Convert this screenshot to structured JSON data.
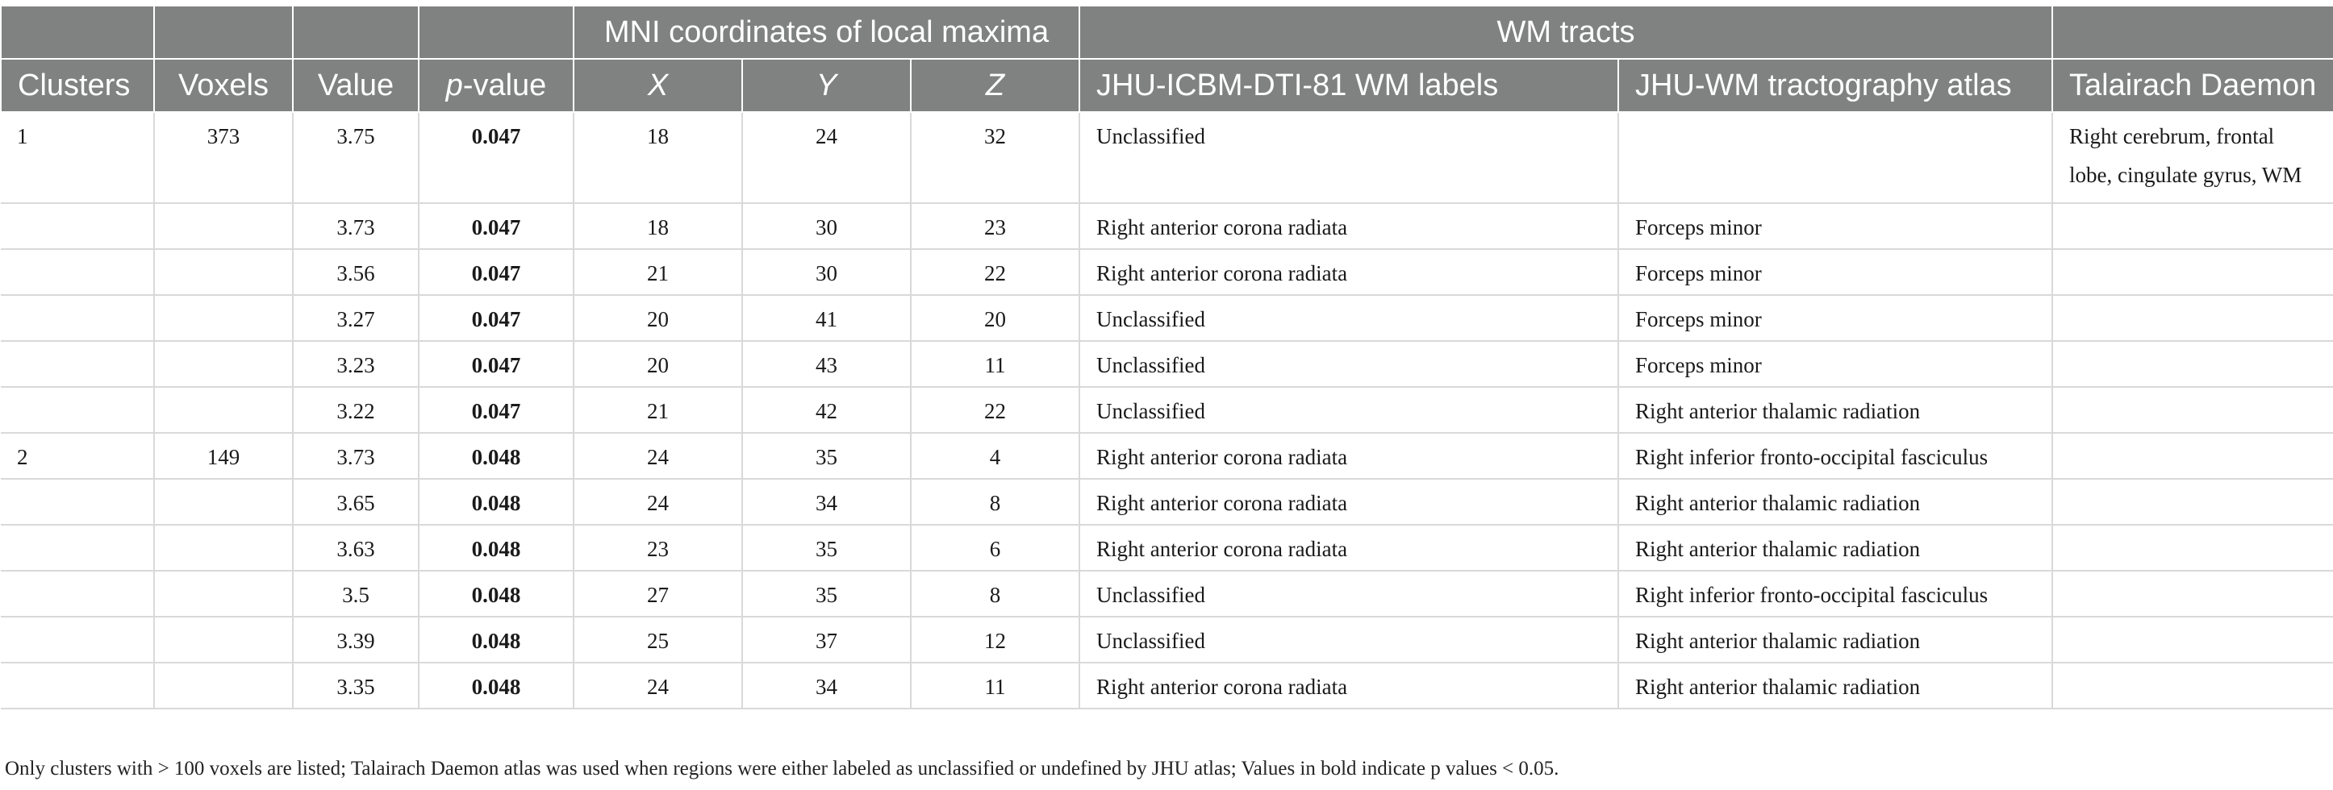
{
  "header": {
    "group_mni": "MNI coordinates of local maxima",
    "group_wm": "WM tracts",
    "columns": {
      "clusters": "Clusters",
      "voxels": "Voxels",
      "value": "Value",
      "p_italic": "p",
      "p_rest": "-value",
      "x": "X",
      "y": "Y",
      "z": "Z",
      "jhu_labels": "JHU-ICBM-DTI-81 WM labels",
      "jhu_tract": "JHU-WM tractography atlas",
      "talairach": "Talairach Daemon"
    }
  },
  "rows": [
    {
      "cluster": "1",
      "voxels": "373",
      "value": "3.75",
      "p": "0.047",
      "x": "18",
      "y": "24",
      "z": "32",
      "jhu_labels": "Unclassified",
      "jhu_tract": "",
      "talairach_line1": "Right cerebrum, frontal",
      "talairach_line2": "lobe, cingulate gyrus, WM"
    },
    {
      "cluster": "",
      "voxels": "",
      "value": "3.73",
      "p": "0.047",
      "x": "18",
      "y": "30",
      "z": "23",
      "jhu_labels": "Right anterior corona radiata",
      "jhu_tract": "Forceps minor",
      "talairach_line1": "",
      "talairach_line2": ""
    },
    {
      "cluster": "",
      "voxels": "",
      "value": "3.56",
      "p": "0.047",
      "x": "21",
      "y": "30",
      "z": "22",
      "jhu_labels": "Right anterior corona radiata",
      "jhu_tract": "Forceps minor",
      "talairach_line1": "",
      "talairach_line2": ""
    },
    {
      "cluster": "",
      "voxels": "",
      "value": "3.27",
      "p": "0.047",
      "x": "20",
      "y": "41",
      "z": "20",
      "jhu_labels": "Unclassified",
      "jhu_tract": "Forceps minor",
      "talairach_line1": "",
      "talairach_line2": ""
    },
    {
      "cluster": "",
      "voxels": "",
      "value": "3.23",
      "p": "0.047",
      "x": "20",
      "y": "43",
      "z": "11",
      "jhu_labels": "Unclassified",
      "jhu_tract": "Forceps minor",
      "talairach_line1": "",
      "talairach_line2": ""
    },
    {
      "cluster": "",
      "voxels": "",
      "value": "3.22",
      "p": "0.047",
      "x": "21",
      "y": "42",
      "z": "22",
      "jhu_labels": "Unclassified",
      "jhu_tract": "Right anterior thalamic radiation",
      "talairach_line1": "",
      "talairach_line2": ""
    },
    {
      "cluster": "2",
      "voxels": "149",
      "value": "3.73",
      "p": "0.048",
      "x": "24",
      "y": "35",
      "z": "4",
      "jhu_labels": "Right anterior corona radiata",
      "jhu_tract": "Right inferior fronto-occipital fasciculus",
      "talairach_line1": "",
      "talairach_line2": ""
    },
    {
      "cluster": "",
      "voxels": "",
      "value": "3.65",
      "p": "0.048",
      "x": "24",
      "y": "34",
      "z": "8",
      "jhu_labels": "Right anterior corona radiata",
      "jhu_tract": "Right anterior thalamic radiation",
      "talairach_line1": "",
      "talairach_line2": ""
    },
    {
      "cluster": "",
      "voxels": "",
      "value": "3.63",
      "p": "0.048",
      "x": "23",
      "y": "35",
      "z": "6",
      "jhu_labels": "Right anterior corona radiata",
      "jhu_tract": "Right anterior thalamic radiation",
      "talairach_line1": "",
      "talairach_line2": ""
    },
    {
      "cluster": "",
      "voxels": "",
      "value": "3.5",
      "p": "0.048",
      "x": "27",
      "y": "35",
      "z": "8",
      "jhu_labels": "Unclassified",
      "jhu_tract": "Right inferior fronto-occipital fasciculus",
      "talairach_line1": "",
      "talairach_line2": ""
    },
    {
      "cluster": "",
      "voxels": "",
      "value": "3.39",
      "p": "0.048",
      "x": "25",
      "y": "37",
      "z": "12",
      "jhu_labels": "Unclassified",
      "jhu_tract": "Right anterior thalamic radiation",
      "talairach_line1": "",
      "talairach_line2": ""
    },
    {
      "cluster": "",
      "voxels": "",
      "value": "3.35",
      "p": "0.048",
      "x": "24",
      "y": "34",
      "z": "11",
      "jhu_labels": "Right anterior corona radiata",
      "jhu_tract": "Right anterior thalamic radiation",
      "talairach_line1": "",
      "talairach_line2": ""
    }
  ],
  "footnote": "Only clusters with > 100 voxels are listed; Talairach Daemon atlas was used when regions were either labeled as unclassified or undefined by JHU atlas; Values in bold indicate p values < 0.05."
}
